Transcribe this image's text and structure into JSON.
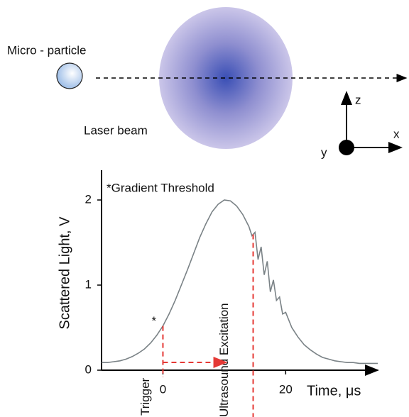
{
  "diagram": {
    "particle_label": "Micro - particle",
    "beam_label": "Laser beam",
    "axis_z": "z",
    "axis_x": "x",
    "axis_y": "y"
  },
  "chart_data": {
    "type": "line",
    "ylabel": "Scattered Light, V",
    "xlabel": "Time, μs",
    "annotation": "*Gradient Threshold",
    "threshold_marker": "*",
    "xlim": [
      -10,
      35
    ],
    "ylim": [
      0,
      2.35
    ],
    "xticks": [
      0,
      20
    ],
    "yticks": [
      0,
      1,
      2
    ],
    "color": "#7a8286",
    "x": [
      -10,
      -9,
      -8,
      -7,
      -6,
      -5,
      -4,
      -3,
      -2,
      -1,
      0,
      1,
      2,
      3,
      4,
      5,
      6,
      7,
      8,
      9,
      10,
      11,
      12,
      13,
      14,
      14.5,
      15,
      15.5,
      16,
      16.5,
      17,
      17.5,
      18,
      18.5,
      19,
      19.5,
      20,
      21,
      22,
      23,
      24,
      25,
      26,
      27,
      28,
      29,
      30,
      31,
      32,
      33,
      34,
      35
    ],
    "values": [
      0.09,
      0.09,
      0.1,
      0.11,
      0.13,
      0.16,
      0.2,
      0.25,
      0.32,
      0.41,
      0.52,
      0.66,
      0.82,
      1.0,
      1.18,
      1.37,
      1.56,
      1.72,
      1.86,
      1.95,
      2.0,
      1.99,
      1.93,
      1.83,
      1.69,
      1.58,
      1.62,
      1.3,
      1.45,
      1.12,
      1.28,
      0.92,
      1.06,
      0.82,
      0.86,
      0.66,
      0.68,
      0.5,
      0.39,
      0.3,
      0.24,
      0.19,
      0.15,
      0.13,
      0.11,
      0.1,
      0.09,
      0.09,
      0.08,
      0.08,
      0.08,
      0.08
    ],
    "events": [
      {
        "label": "Trigger",
        "x": 0
      },
      {
        "label": "Ultrasound Excitation",
        "x": 14.7
      }
    ],
    "event_color": "#e53935"
  }
}
